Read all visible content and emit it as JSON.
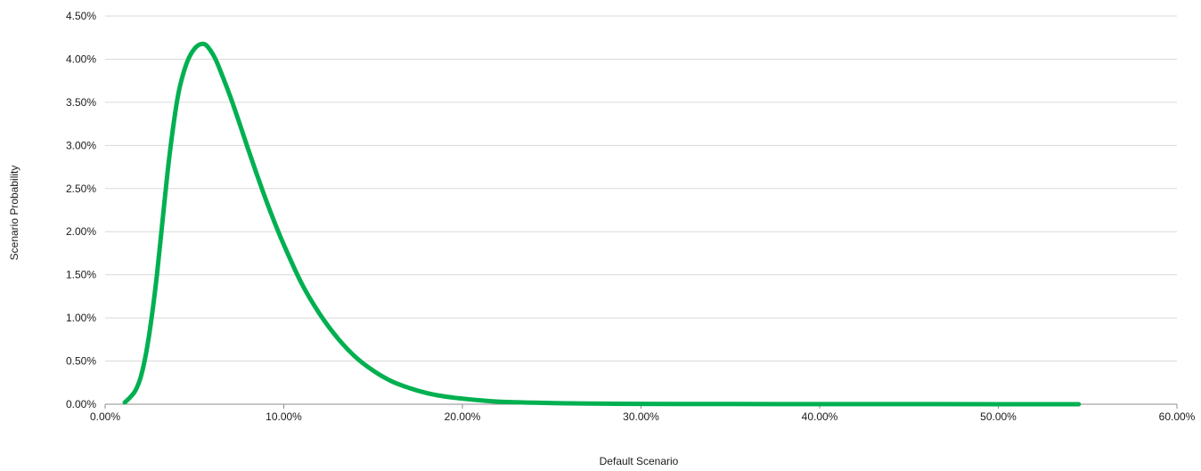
{
  "chart_data": {
    "type": "line",
    "title": "",
    "xlabel": "Default Scenario",
    "ylabel": "Scenario Probability",
    "xlim": [
      0,
      60
    ],
    "ylim": [
      0,
      4.5
    ],
    "x_ticks": [
      0,
      10,
      20,
      30,
      40,
      50,
      60
    ],
    "y_ticks": [
      0,
      0.5,
      1,
      1.5,
      2,
      2.5,
      3,
      3.5,
      4,
      4.5
    ],
    "x_tick_labels": [
      "0.00%",
      "10.00%",
      "20.00%",
      "30.00%",
      "40.00%",
      "50.00%",
      "60.00%"
    ],
    "y_tick_labels": [
      "0.00%",
      "0.50%",
      "1.00%",
      "1.50%",
      "2.00%",
      "2.50%",
      "3.00%",
      "3.50%",
      "4.00%",
      "4.50%"
    ],
    "grid": true,
    "legend": "none",
    "series": [
      {
        "color": "#00b050",
        "x": [
          1.1,
          1.4,
          1.7,
          2.0,
          2.3,
          2.6,
          2.9,
          3.2,
          3.5,
          3.8,
          4.1,
          4.4,
          4.7,
          5.0,
          5.3,
          5.6,
          5.9,
          6.2,
          6.5,
          7.0,
          7.5,
          8.0,
          8.5,
          9.0,
          9.5,
          10.0,
          11.0,
          12.0,
          13.0,
          14.0,
          15.0,
          16.0,
          17.0,
          18.0,
          19.0,
          20.0,
          21.0,
          22.0,
          24.0,
          26.0,
          28.0,
          30.0,
          35.0,
          40.0,
          45.0,
          50.0,
          54.5
        ],
        "y": [
          0.02,
          0.08,
          0.16,
          0.32,
          0.6,
          1.0,
          1.5,
          2.1,
          2.7,
          3.2,
          3.6,
          3.85,
          4.02,
          4.12,
          4.17,
          4.17,
          4.1,
          3.99,
          3.84,
          3.57,
          3.27,
          2.96,
          2.66,
          2.37,
          2.1,
          1.85,
          1.4,
          1.05,
          0.77,
          0.55,
          0.39,
          0.27,
          0.19,
          0.13,
          0.09,
          0.065,
          0.045,
          0.03,
          0.018,
          0.01,
          0.006,
          0.004,
          0.002,
          0.001,
          0.001,
          0.0,
          0.0
        ]
      }
    ]
  }
}
